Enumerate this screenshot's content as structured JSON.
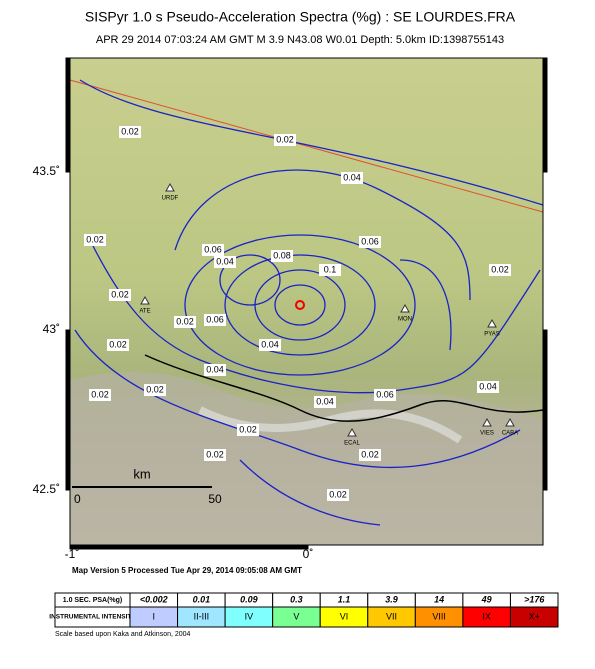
{
  "header": {
    "title": "SISPyr 1.0 s Pseudo-Acceleration Spectra (%g) : SE LOURDES.FRA",
    "subtitle": "APR 29 2014 07:03:24 AM GMT   M 3.9   N43.08 W0.01   Depth: 5.0km   ID:1398755143"
  },
  "map": {
    "lat_labels": [
      "43.5˚",
      "43˚",
      "42.5˚"
    ],
    "lon_labels": [
      "-1˚",
      "0˚"
    ],
    "scale": {
      "unit": "km",
      "start": "0",
      "end": "50"
    },
    "contour_labels": [
      "0.02",
      "0.02",
      "0.04",
      "0.06",
      "0.06",
      "0.02",
      "0.02",
      "0.08",
      "0.04",
      "0.1",
      "0.02",
      "0.06",
      "0.02",
      "0.04",
      "0.04",
      "0.02",
      "0.06",
      "0.02",
      "0.04",
      "0.02",
      "0.02",
      "0.04",
      "0.02",
      "0.02",
      "0.02"
    ],
    "stations": [
      "URDF",
      "ATE",
      "PYAS",
      "VIES",
      "CABA",
      "ECAL",
      "MON"
    ]
  },
  "footer": {
    "version": "Map Version 5 Processed Tue Apr 29, 2014 09:05:08 AM GMT",
    "credit": "Scale based upon Kaka and Atkinson, 2004"
  },
  "legend": {
    "row_headers": [
      "1.0 SEC. PSA(%g)",
      "INSTRUMENTAL INTENSITY"
    ],
    "psa": [
      "<0.002",
      "0.01",
      "0.09",
      "0.3",
      "1.1",
      "3.9",
      "14",
      "49",
      ">176"
    ],
    "intensity": [
      "I",
      "II-III",
      "IV",
      "V",
      "VI",
      "VII",
      "VIII",
      "IX",
      "X+"
    ],
    "colors": [
      "#ffffff",
      "#bfccff",
      "#a0e6ff",
      "#80ffff",
      "#7aff93",
      "#ffff00",
      "#ffc800",
      "#ff9100",
      "#ff0000",
      "#c80000"
    ]
  }
}
